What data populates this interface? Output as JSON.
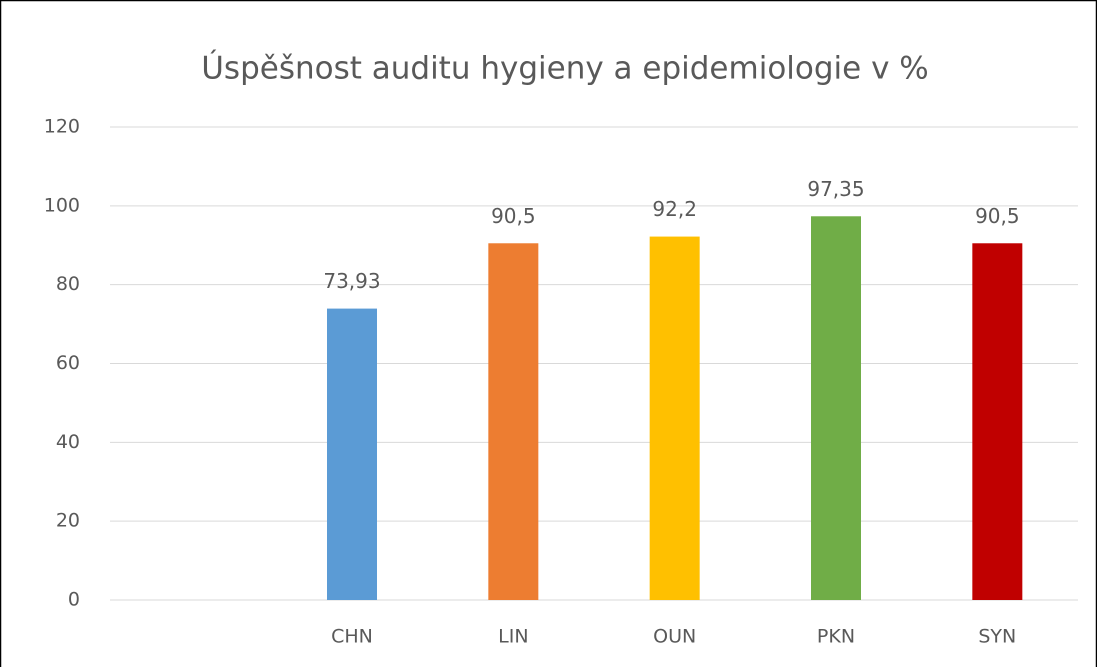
{
  "chart_data": {
    "type": "bar",
    "title": "Úspěšnost auditu hygieny a epidemiologie v %",
    "categories": [
      null,
      "CHN",
      "LIN",
      "OUN",
      "PKN",
      "SYN"
    ],
    "values": [
      null,
      73.93,
      90.5,
      92.2,
      97.35,
      90.5
    ],
    "value_labels": [
      null,
      "73,93",
      "90,5",
      "92,2",
      "97,35",
      "90,5"
    ],
    "colors": [
      null,
      "#5b9bd5",
      "#ed7d31",
      "#ffc000",
      "#70ad47",
      "#c00000"
    ],
    "ylim": [
      0,
      120
    ],
    "yticks": [
      0,
      20,
      40,
      60,
      80,
      100,
      120
    ],
    "grid": true
  }
}
